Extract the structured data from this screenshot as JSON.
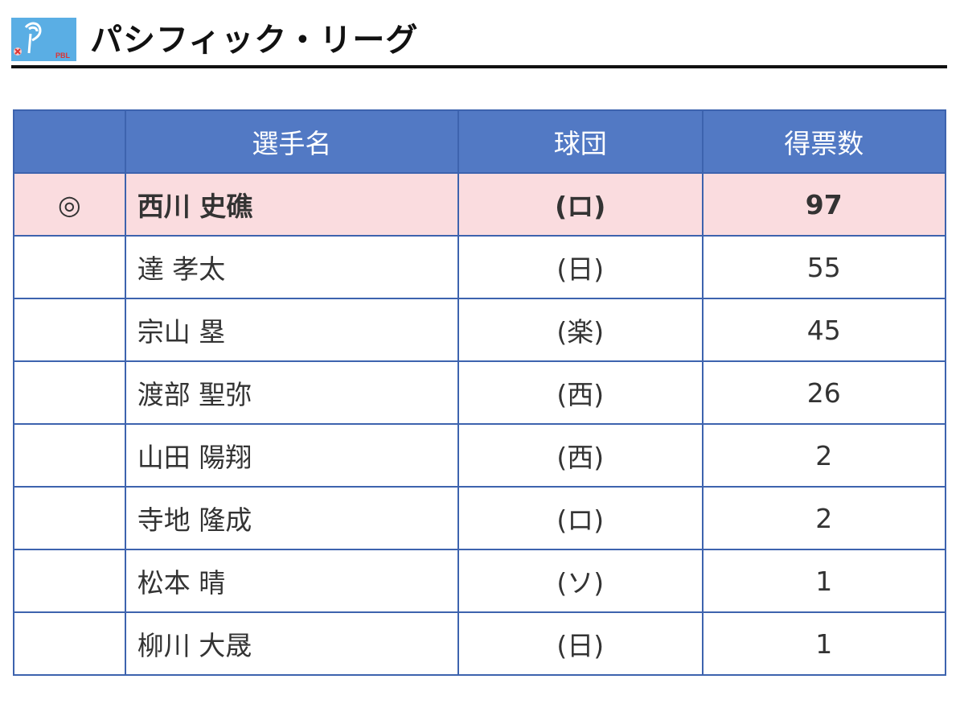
{
  "header": {
    "title": "パシフィック・リーグ",
    "logo_text": "PBL"
  },
  "table": {
    "columns": [
      "",
      "選手名",
      "球団",
      "得票数"
    ],
    "rows": [
      {
        "mark": "◎",
        "name": "西川 史礁",
        "team": "(ロ)",
        "votes": "97"
      },
      {
        "mark": "",
        "name": "達 孝太",
        "team": "(日)",
        "votes": "55"
      },
      {
        "mark": "",
        "name": "宗山 塁",
        "team": "(楽)",
        "votes": "45"
      },
      {
        "mark": "",
        "name": "渡部 聖弥",
        "team": "(西)",
        "votes": "26"
      },
      {
        "mark": "",
        "name": "山田 陽翔",
        "team": "(西)",
        "votes": "2"
      },
      {
        "mark": "",
        "name": "寺地 隆成",
        "team": "(ロ)",
        "votes": "2"
      },
      {
        "mark": "",
        "name": "松本 晴",
        "team": "(ソ)",
        "votes": "1"
      },
      {
        "mark": "",
        "name": "柳川 大晟",
        "team": "(日)",
        "votes": "1"
      }
    ]
  }
}
